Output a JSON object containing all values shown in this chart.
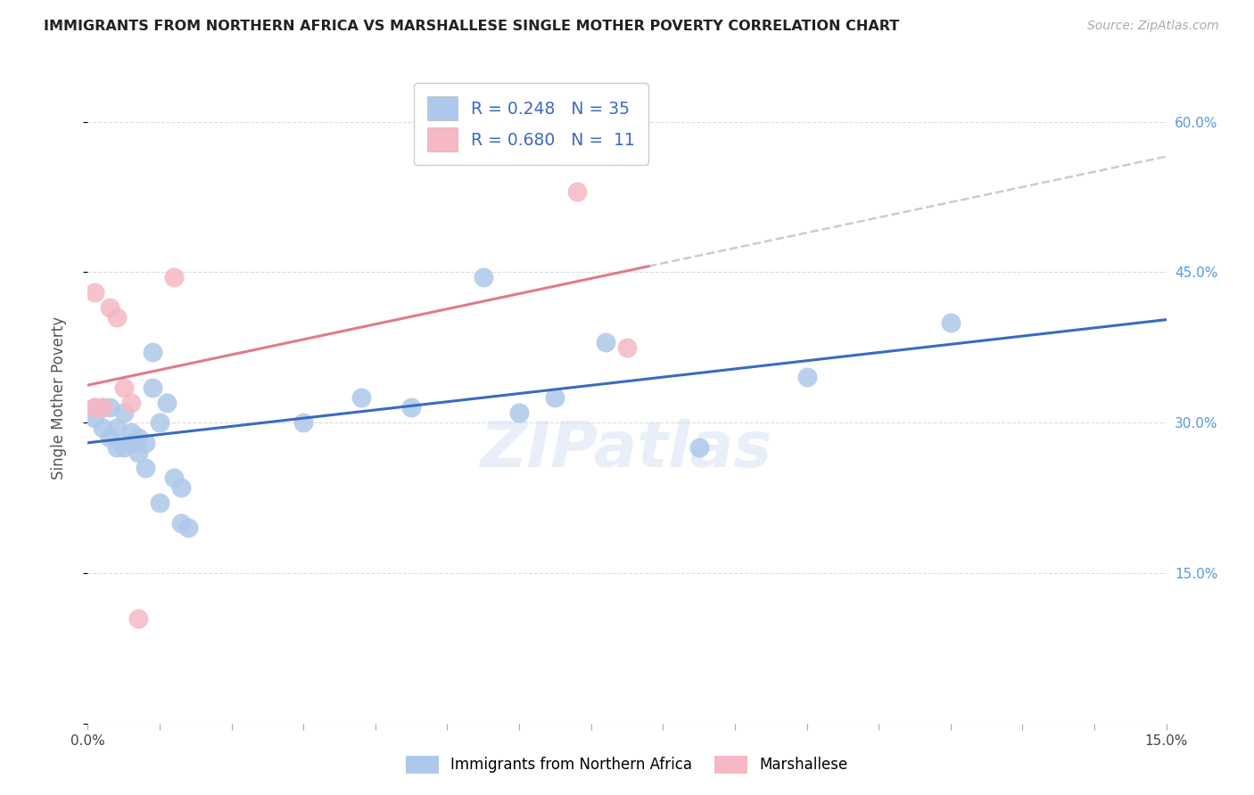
{
  "title": "IMMIGRANTS FROM NORTHERN AFRICA VS MARSHALLESE SINGLE MOTHER POVERTY CORRELATION CHART",
  "source": "Source: ZipAtlas.com",
  "ylabel": "Single Mother Poverty",
  "xlim": [
    0.0,
    0.15
  ],
  "ylim": [
    0.0,
    0.65
  ],
  "watermark": "ZIPatlas",
  "legend_blue_r": "R = 0.248",
  "legend_blue_n": "N = 35",
  "legend_pink_r": "R = 0.680",
  "legend_pink_n": "N =  11",
  "blue_color": "#adc8ea",
  "pink_color": "#f5b8c4",
  "blue_line_color": "#3a6bbf",
  "pink_line_color": "#e07a8a",
  "grid_color": "#dddddd",
  "background_color": "#ffffff",
  "blue_x": [
    0.001,
    0.001,
    0.002,
    0.002,
    0.003,
    0.003,
    0.004,
    0.004,
    0.005,
    0.005,
    0.006,
    0.006,
    0.007,
    0.007,
    0.008,
    0.008,
    0.009,
    0.009,
    0.01,
    0.01,
    0.011,
    0.012,
    0.013,
    0.013,
    0.014,
    0.03,
    0.038,
    0.045,
    0.055,
    0.06,
    0.065,
    0.072,
    0.085,
    0.1,
    0.12
  ],
  "blue_y": [
    0.315,
    0.305,
    0.295,
    0.315,
    0.285,
    0.315,
    0.295,
    0.275,
    0.275,
    0.31,
    0.28,
    0.29,
    0.285,
    0.27,
    0.255,
    0.28,
    0.37,
    0.335,
    0.3,
    0.22,
    0.32,
    0.245,
    0.235,
    0.2,
    0.195,
    0.3,
    0.325,
    0.315,
    0.445,
    0.31,
    0.325,
    0.38,
    0.275,
    0.345,
    0.4
  ],
  "pink_x": [
    0.001,
    0.001,
    0.002,
    0.003,
    0.004,
    0.005,
    0.006,
    0.007,
    0.012,
    0.068,
    0.075
  ],
  "pink_y": [
    0.315,
    0.43,
    0.315,
    0.415,
    0.405,
    0.335,
    0.32,
    0.105,
    0.445,
    0.53,
    0.375
  ],
  "right_yticks": [
    0.15,
    0.3,
    0.45,
    0.6
  ],
  "right_ytick_labels": [
    "15.0%",
    "30.0%",
    "45.0%",
    "60.0%"
  ]
}
